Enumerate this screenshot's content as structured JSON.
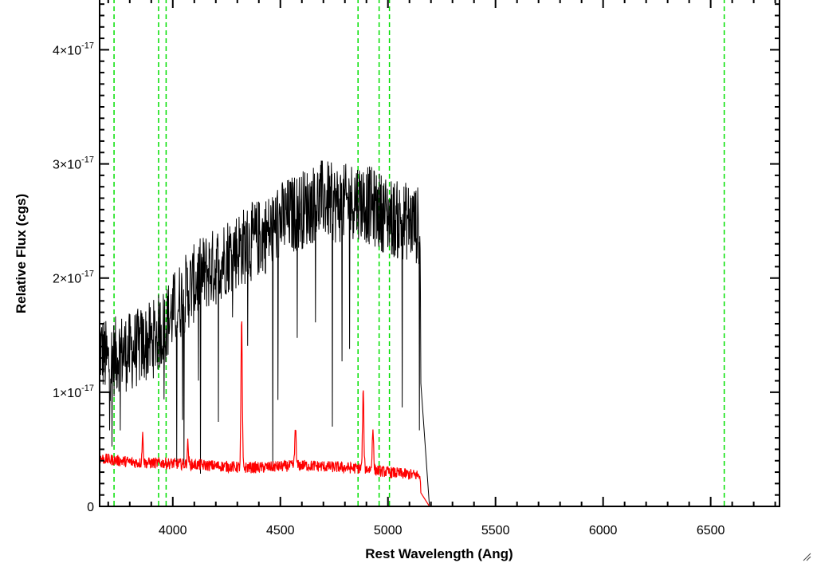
{
  "chart_data": {
    "type": "line",
    "xlabel": "Rest Wavelength (Ang)",
    "ylabel": "Relative Flux (cgs)",
    "xlim": [
      3660,
      6820
    ],
    "ylim": [
      0,
      4.45e-17
    ],
    "x_ticks": [
      4000,
      4500,
      5000,
      5500,
      6000,
      6500
    ],
    "x_tick_labels": [
      "4000",
      "4500",
      "5000",
      "5500",
      "6000",
      "6500"
    ],
    "y_ticks": [
      0,
      1e-17,
      2e-17,
      3e-17,
      4e-17
    ],
    "y_tick_labels": [
      {
        "mantissa": "0",
        "times": "",
        "base": "",
        "exponent": ""
      },
      {
        "mantissa": "1",
        "times": "×",
        "base": "10",
        "exponent": "-17"
      },
      {
        "mantissa": "2",
        "times": "×",
        "base": "10",
        "exponent": "-17"
      },
      {
        "mantissa": "3",
        "times": "×",
        "base": "10",
        "exponent": "-17"
      },
      {
        "mantissa": "4",
        "times": "×",
        "base": "10",
        "exponent": "-17"
      }
    ],
    "reference_lines_x": [
      3727,
      3934,
      3969,
      4861,
      4959,
      5007,
      6563
    ],
    "reference_line_style": "dashed",
    "grid": false,
    "series": [
      {
        "color": "#000000",
        "x": [
          3660,
          3700,
          3750,
          3800,
          3850,
          3900,
          3950,
          4000,
          4050,
          4100,
          4150,
          4200,
          4250,
          4300,
          4350,
          4400,
          4450,
          4500,
          4550,
          4600,
          4650,
          4700,
          4750,
          4800,
          4850,
          4900,
          4950,
          5000,
          5050,
          5100,
          5150,
          5155,
          5160,
          6820
        ],
        "y": [
          1.4e-17,
          1.25e-17,
          1.35e-17,
          1.35e-17,
          1.4e-17,
          1.45e-17,
          1.55e-17,
          1.7e-17,
          1.85e-17,
          1.95e-17,
          2.05e-17,
          2.1e-17,
          2.2e-17,
          2.25e-17,
          2.3e-17,
          2.35e-17,
          2.4e-17,
          2.5e-17,
          2.55e-17,
          2.6e-17,
          2.65e-17,
          2.7e-17,
          2.65e-17,
          2.65e-17,
          2.7e-17,
          2.65e-17,
          2.6e-17,
          2.55e-17,
          2.5e-17,
          2.5e-17,
          2.45e-17,
          0,
          0,
          0
        ],
        "noise": 3.5e-18
      },
      {
        "color": "#ff0000",
        "x": [
          3660,
          3750,
          3850,
          3950,
          4050,
          4150,
          4250,
          4320,
          4400,
          4500,
          4600,
          4700,
          4800,
          4900,
          5000,
          5100,
          5150,
          5155,
          5160,
          6820
        ],
        "y": [
          4.2e-18,
          4e-18,
          3.8e-18,
          3.8e-18,
          3.7e-18,
          3.6e-18,
          3.5e-18,
          3.4e-18,
          3.4e-18,
          3.5e-18,
          3.6e-18,
          3.5e-18,
          3.4e-18,
          3.3e-18,
          3e-18,
          2.8e-18,
          2.7e-18,
          0,
          0,
          0
        ],
        "noise": 5e-19,
        "emission_lines": [
          {
            "x": 3860,
            "y": 6.2e-18
          },
          {
            "x": 4070,
            "y": 5.5e-18
          },
          {
            "x": 4320,
            "y": 1.62e-17
          },
          {
            "x": 4570,
            "y": 7e-18
          },
          {
            "x": 4885,
            "y": 1e-17
          },
          {
            "x": 4930,
            "y": 7e-18
          }
        ]
      }
    ]
  }
}
